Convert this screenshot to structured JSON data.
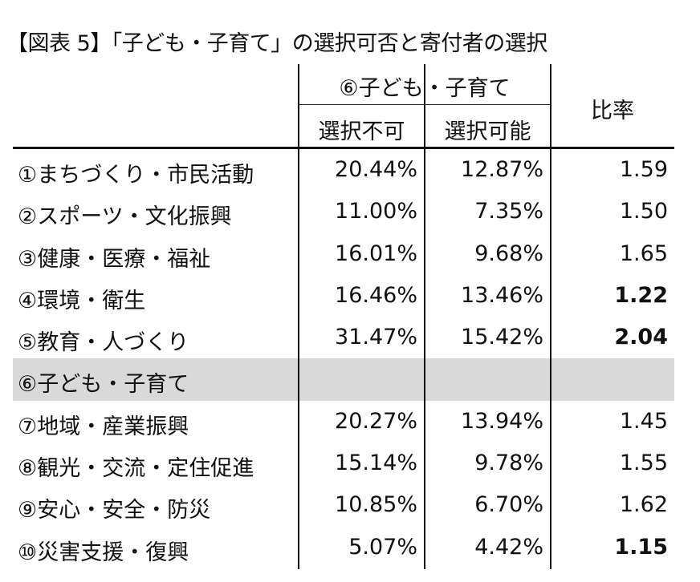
{
  "title": "【図表 5】「子ども・子育て」の選択可否と寄付者の選択",
  "chart_data": {
    "type": "table",
    "header": {
      "group": "⑥子ども・子育て",
      "columns": [
        "選択不可",
        "選択可能"
      ],
      "ratio": "比率"
    },
    "rows": [
      {
        "label": "①まちづくり・市民活動",
        "a": "20.44%",
        "b": "12.87%",
        "ratio": "1.59",
        "bold": false,
        "highlight": false
      },
      {
        "label": "②スポーツ・文化振興",
        "a": "11.00%",
        "b": "7.35%",
        "ratio": "1.50",
        "bold": false,
        "highlight": false
      },
      {
        "label": "③健康・医療・福祉",
        "a": "16.01%",
        "b": "9.68%",
        "ratio": "1.65",
        "bold": false,
        "highlight": false
      },
      {
        "label": "④環境・衛生",
        "a": "16.46%",
        "b": "13.46%",
        "ratio": "1.22",
        "bold": true,
        "highlight": false
      },
      {
        "label": "⑤教育・人づくり",
        "a": "31.47%",
        "b": "15.42%",
        "ratio": "2.04",
        "bold": true,
        "highlight": false
      },
      {
        "label": "⑥子ども・子育て",
        "a": "",
        "b": "",
        "ratio": "",
        "bold": false,
        "highlight": true
      },
      {
        "label": "⑦地域・産業振興",
        "a": "20.27%",
        "b": "13.94%",
        "ratio": "1.45",
        "bold": false,
        "highlight": false
      },
      {
        "label": "⑧観光・交流・定住促進",
        "a": "15.14%",
        "b": "9.78%",
        "ratio": "1.55",
        "bold": false,
        "highlight": false
      },
      {
        "label": "⑨安心・安全・防災",
        "a": "10.85%",
        "b": "6.70%",
        "ratio": "1.62",
        "bold": false,
        "highlight": false
      },
      {
        "label": "⑩災害支援・復興",
        "a": "5.07%",
        "b": "4.42%",
        "ratio": "1.15",
        "bold": true,
        "highlight": false
      }
    ]
  }
}
